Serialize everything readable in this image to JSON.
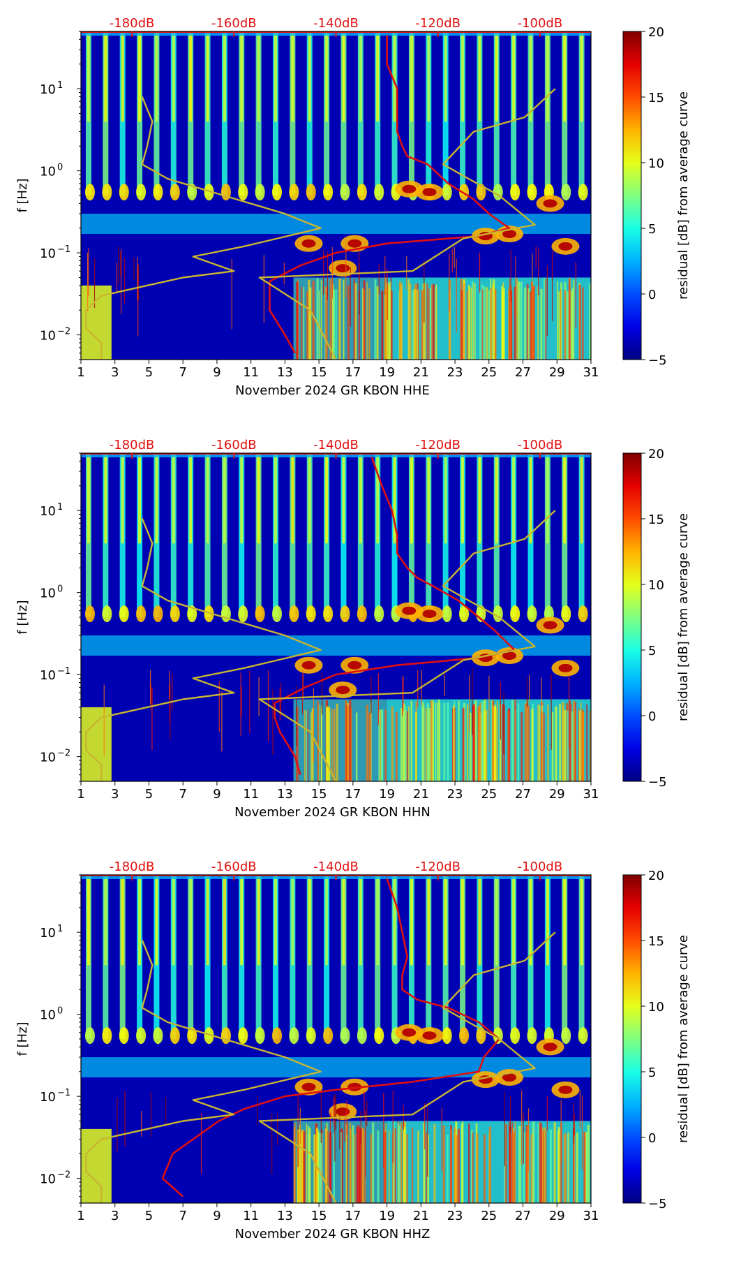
{
  "chart_data": [
    {
      "type": "heatmap",
      "title": "",
      "xlabel": "November 2024 GR KBON  HHE",
      "ylabel": "f [Hz]",
      "xlim": [
        1,
        31
      ],
      "ylim_hz": [
        0.005,
        50
      ],
      "x_ticks": [
        1,
        3,
        5,
        7,
        9,
        11,
        13,
        15,
        17,
        19,
        21,
        23,
        25,
        27,
        29,
        31
      ],
      "y_ticks": [
        {
          "value": 0.01,
          "label": "10",
          "exp": "−2"
        },
        {
          "value": 0.1,
          "label": "10",
          "exp": "−1"
        },
        {
          "value": 1,
          "label": "10",
          "exp": "0"
        },
        {
          "value": 10,
          "label": "10",
          "exp": "1"
        }
      ],
      "top_axis_labels": [
        {
          "value": -180,
          "label": "-180dB"
        },
        {
          "value": -160,
          "label": "-160dB"
        },
        {
          "value": -140,
          "label": "-140dB"
        },
        {
          "value": -120,
          "label": "-120dB"
        },
        {
          "value": -100,
          "label": "-100dB"
        }
      ],
      "top_axis_range_db": [
        -190,
        -90
      ],
      "colorbar": {
        "label": "residual [dB] from average curve",
        "range": [
          -5,
          20
        ],
        "ticks": [
          -5,
          0,
          5,
          10,
          15,
          20
        ]
      },
      "series": [
        {
          "name": "red PSD curve",
          "color": "#e01010",
          "points": [
            [
              -130,
              45
            ],
            [
              -130,
              20
            ],
            [
              -128,
              10
            ],
            [
              -128,
              5
            ],
            [
              -128,
              3
            ],
            [
              -127,
              2
            ],
            [
              -126,
              1.5
            ],
            [
              -122,
              1.2
            ],
            [
              -118,
              0.7
            ],
            [
              -113,
              0.45
            ],
            [
              -110,
              0.3
            ],
            [
              -106,
              0.2
            ],
            [
              -112,
              0.16
            ],
            [
              -130,
              0.13
            ],
            [
              -140,
              0.1
            ],
            [
              -147,
              0.07
            ],
            [
              -153,
              0.045
            ],
            [
              -153,
              0.03
            ],
            [
              -153,
              0.02
            ],
            [
              -150,
              0.01
            ],
            [
              -148,
              0.006
            ]
          ]
        },
        {
          "name": "high noise model",
          "color": "#c9b630",
          "points": [
            [
              -178,
              8
            ],
            [
              -176,
              4
            ],
            [
              -177,
              2
            ],
            [
              -178,
              1.2
            ],
            [
              -173,
              0.8
            ],
            [
              -162,
              0.5
            ],
            [
              -150,
              0.3
            ],
            [
              -143,
              0.2
            ],
            [
              -158,
              0.12
            ],
            [
              -168,
              0.09
            ],
            [
              -160,
              0.06
            ],
            [
              -170,
              0.05
            ],
            [
              -186,
              0.03
            ],
            [
              -189,
              0.02
            ],
            [
              -189,
              0.012
            ],
            [
              -186,
              0.008
            ],
            [
              -186,
              0.005
            ]
          ]
        },
        {
          "name": "low noise model",
          "color": "#c9b630",
          "points": [
            [
              -140,
              0.005
            ],
            [
              -145,
              0.02
            ],
            [
              -155,
              0.05
            ],
            [
              -125,
              0.06
            ],
            [
              -115,
              0.15
            ],
            [
              -101,
              0.22
            ],
            [
              -108,
              0.5
            ],
            [
              -114,
              0.8
            ],
            [
              -119,
              1.2
            ],
            [
              -113,
              3
            ],
            [
              -103,
              4.5
            ],
            [
              -97,
              10
            ]
          ]
        }
      ]
    },
    {
      "type": "heatmap",
      "title": "",
      "xlabel": "November 2024 GR KBON  HHN",
      "ylabel": "f [Hz]",
      "xlim": [
        1,
        31
      ],
      "ylim_hz": [
        0.005,
        50
      ],
      "x_ticks": [
        1,
        3,
        5,
        7,
        9,
        11,
        13,
        15,
        17,
        19,
        21,
        23,
        25,
        27,
        29,
        31
      ],
      "y_ticks": [
        {
          "value": 0.01,
          "label": "10",
          "exp": "−2"
        },
        {
          "value": 0.1,
          "label": "10",
          "exp": "−1"
        },
        {
          "value": 1,
          "label": "10",
          "exp": "0"
        },
        {
          "value": 10,
          "label": "10",
          "exp": "1"
        }
      ],
      "top_axis_labels": [
        {
          "value": -180,
          "label": "-180dB"
        },
        {
          "value": -160,
          "label": "-160dB"
        },
        {
          "value": -140,
          "label": "-140dB"
        },
        {
          "value": -120,
          "label": "-120dB"
        },
        {
          "value": -100,
          "label": "-100dB"
        }
      ],
      "top_axis_range_db": [
        -190,
        -90
      ],
      "colorbar": {
        "label": "residual [dB] from average curve",
        "range": [
          -5,
          20
        ],
        "ticks": [
          -5,
          0,
          5,
          10,
          15,
          20
        ]
      },
      "series": [
        {
          "name": "red PSD curve",
          "color": "#e01010",
          "points": [
            [
              -133,
              45
            ],
            [
              -131,
              20
            ],
            [
              -129,
              10
            ],
            [
              -128,
              5
            ],
            [
              -128,
              3
            ],
            [
              -126,
              2
            ],
            [
              -124,
              1.5
            ],
            [
              -121,
              1.2
            ],
            [
              -116,
              0.8
            ],
            [
              -112,
              0.5
            ],
            [
              -109,
              0.35
            ],
            [
              -105,
              0.2
            ],
            [
              -112,
              0.16
            ],
            [
              -128,
              0.13
            ],
            [
              -140,
              0.1
            ],
            [
              -146,
              0.07
            ],
            [
              -152,
              0.045
            ],
            [
              -152,
              0.03
            ],
            [
              -151,
              0.02
            ],
            [
              -148,
              0.01
            ],
            [
              -147,
              0.006
            ]
          ]
        },
        {
          "name": "high noise model",
          "color": "#c9b630",
          "points": [
            [
              -178,
              8
            ],
            [
              -176,
              4
            ],
            [
              -177,
              2
            ],
            [
              -178,
              1.2
            ],
            [
              -173,
              0.8
            ],
            [
              -162,
              0.5
            ],
            [
              -150,
              0.3
            ],
            [
              -143,
              0.2
            ],
            [
              -158,
              0.12
            ],
            [
              -168,
              0.09
            ],
            [
              -160,
              0.06
            ],
            [
              -170,
              0.05
            ],
            [
              -186,
              0.03
            ],
            [
              -189,
              0.02
            ],
            [
              -189,
              0.012
            ],
            [
              -186,
              0.008
            ],
            [
              -186,
              0.005
            ]
          ]
        },
        {
          "name": "low noise model",
          "color": "#c9b630",
          "points": [
            [
              -140,
              0.005
            ],
            [
              -145,
              0.02
            ],
            [
              -155,
              0.05
            ],
            [
              -125,
              0.06
            ],
            [
              -115,
              0.15
            ],
            [
              -101,
              0.22
            ],
            [
              -108,
              0.5
            ],
            [
              -114,
              0.8
            ],
            [
              -119,
              1.2
            ],
            [
              -113,
              3
            ],
            [
              -103,
              4.5
            ],
            [
              -97,
              10
            ]
          ]
        }
      ]
    },
    {
      "type": "heatmap",
      "title": "",
      "xlabel": "November 2024 GR KBON  HHZ",
      "ylabel": "f [Hz]",
      "xlim": [
        1,
        31
      ],
      "ylim_hz": [
        0.005,
        50
      ],
      "x_ticks": [
        1,
        3,
        5,
        7,
        9,
        11,
        13,
        15,
        17,
        19,
        21,
        23,
        25,
        27,
        29,
        31
      ],
      "y_ticks": [
        {
          "value": 0.01,
          "label": "10",
          "exp": "−2"
        },
        {
          "value": 0.1,
          "label": "10",
          "exp": "−1"
        },
        {
          "value": 1,
          "label": "10",
          "exp": "0"
        },
        {
          "value": 10,
          "label": "10",
          "exp": "1"
        }
      ],
      "top_axis_labels": [
        {
          "value": -180,
          "label": "-180dB"
        },
        {
          "value": -160,
          "label": "-160dB"
        },
        {
          "value": -140,
          "label": "-140dB"
        },
        {
          "value": -120,
          "label": "-120dB"
        },
        {
          "value": -100,
          "label": "-100dB"
        }
      ],
      "top_axis_range_db": [
        -190,
        -90
      ],
      "colorbar": {
        "label": "residual [dB] from average curve",
        "range": [
          -5,
          20
        ],
        "ticks": [
          -5,
          0,
          5,
          10,
          15,
          20
        ]
      },
      "series": [
        {
          "name": "red PSD curve",
          "color": "#e01010",
          "points": [
            [
              -130,
              45
            ],
            [
              -128,
              20
            ],
            [
              -127,
              10
            ],
            [
              -126,
              5
            ],
            [
              -127,
              3
            ],
            [
              -127,
              2
            ],
            [
              -124,
              1.5
            ],
            [
              -118,
              1.2
            ],
            [
              -112,
              0.8
            ],
            [
              -108,
              0.5
            ],
            [
              -111,
              0.3
            ],
            [
              -112,
              0.2
            ],
            [
              -125,
              0.15
            ],
            [
              -140,
              0.12
            ],
            [
              -150,
              0.1
            ],
            [
              -158,
              0.07
            ],
            [
              -163,
              0.05
            ],
            [
              -168,
              0.03
            ],
            [
              -172,
              0.02
            ],
            [
              -174,
              0.01
            ],
            [
              -170,
              0.006
            ]
          ]
        },
        {
          "name": "high noise model",
          "color": "#c9b630",
          "points": [
            [
              -178,
              8
            ],
            [
              -176,
              4
            ],
            [
              -177,
              2
            ],
            [
              -178,
              1.2
            ],
            [
              -173,
              0.8
            ],
            [
              -162,
              0.5
            ],
            [
              -150,
              0.3
            ],
            [
              -143,
              0.2
            ],
            [
              -158,
              0.12
            ],
            [
              -168,
              0.09
            ],
            [
              -160,
              0.06
            ],
            [
              -170,
              0.05
            ],
            [
              -186,
              0.03
            ],
            [
              -189,
              0.02
            ],
            [
              -189,
              0.012
            ],
            [
              -186,
              0.008
            ],
            [
              -186,
              0.005
            ]
          ]
        },
        {
          "name": "low noise model",
          "color": "#c9b630",
          "points": [
            [
              -140,
              0.005
            ],
            [
              -145,
              0.02
            ],
            [
              -155,
              0.05
            ],
            [
              -125,
              0.06
            ],
            [
              -115,
              0.15
            ],
            [
              -101,
              0.22
            ],
            [
              -108,
              0.5
            ],
            [
              -114,
              0.8
            ],
            [
              -119,
              1.2
            ],
            [
              -113,
              3
            ],
            [
              -103,
              4.5
            ],
            [
              -97,
              10
            ]
          ]
        }
      ]
    }
  ]
}
